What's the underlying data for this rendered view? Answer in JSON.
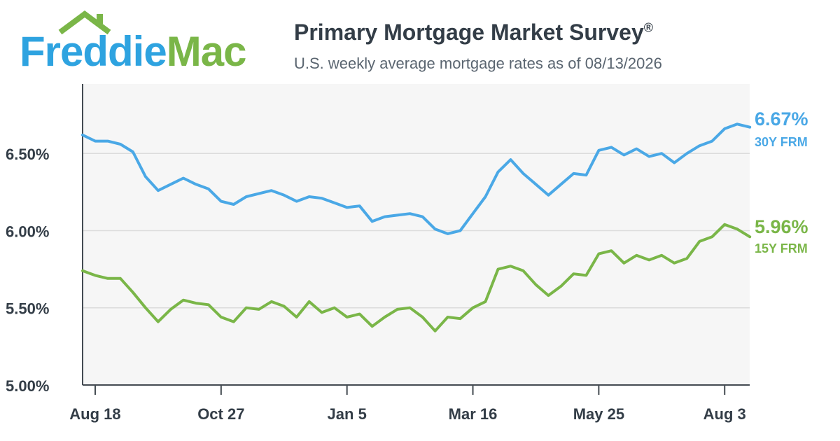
{
  "logo": {
    "part1": "Freddie",
    "part2": "Mac"
  },
  "header": {
    "title": "Primary Mortgage Market Survey",
    "title_mark": "®",
    "subtitle": "U.S. weekly average mortgage rates as of 08/13/2026"
  },
  "colors": {
    "frm30": "#4aa8e6",
    "frm15": "#7ab648",
    "plot_bg": "#f6f6f6",
    "axis": "#444b52",
    "grid": "#dcdcdc",
    "text": "#333d47"
  },
  "chart_data": {
    "type": "line",
    "title": "Primary Mortgage Market Survey",
    "xlabel": "",
    "ylabel": "",
    "ylim": [
      5.0,
      6.95
    ],
    "y_ticks": [
      5.0,
      5.5,
      6.0,
      6.5
    ],
    "y_tick_labels": [
      "5.00%",
      "5.50%",
      "6.00%",
      "6.50%"
    ],
    "x_ticks": [
      1,
      11,
      21,
      31,
      41,
      51
    ],
    "x_tick_labels": [
      "Aug 18",
      "Oct 27",
      "Jan 5",
      "Mar 16",
      "May 25",
      "Aug 3"
    ],
    "xlim": [
      0,
      52.85
    ],
    "grid": true,
    "series": [
      {
        "name": "30Y FRM",
        "end_label": "6.67%",
        "values": [
          6.62,
          6.58,
          6.58,
          6.56,
          6.51,
          6.35,
          6.26,
          6.3,
          6.34,
          6.3,
          6.27,
          6.19,
          6.17,
          6.22,
          6.24,
          6.26,
          6.23,
          6.19,
          6.22,
          6.21,
          6.18,
          6.15,
          6.16,
          6.06,
          6.09,
          6.1,
          6.11,
          6.09,
          6.01,
          5.98,
          6.0,
          6.11,
          6.22,
          6.38,
          6.46,
          6.37,
          6.3,
          6.23,
          6.3,
          6.37,
          6.36,
          6.52,
          6.54,
          6.49,
          6.53,
          6.48,
          6.5,
          6.44,
          6.5,
          6.55,
          6.58,
          6.66,
          6.69,
          6.67
        ]
      },
      {
        "name": "15Y FRM",
        "end_label": "5.96%",
        "values": [
          5.74,
          5.71,
          5.69,
          5.69,
          5.6,
          5.5,
          5.41,
          5.49,
          5.55,
          5.53,
          5.52,
          5.44,
          5.41,
          5.5,
          5.49,
          5.54,
          5.51,
          5.44,
          5.54,
          5.47,
          5.5,
          5.44,
          5.46,
          5.38,
          5.44,
          5.49,
          5.5,
          5.44,
          5.35,
          5.44,
          5.43,
          5.5,
          5.54,
          5.75,
          5.77,
          5.74,
          5.65,
          5.58,
          5.64,
          5.72,
          5.71,
          5.85,
          5.87,
          5.79,
          5.84,
          5.81,
          5.84,
          5.79,
          5.82,
          5.93,
          5.96,
          6.04,
          6.01,
          5.96
        ]
      }
    ]
  }
}
